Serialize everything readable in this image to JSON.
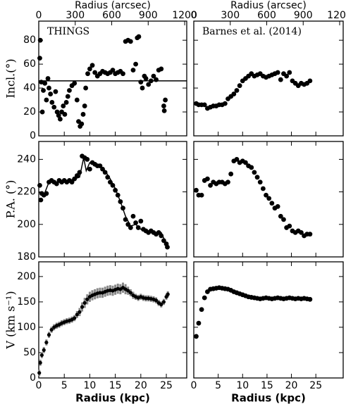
{
  "chart_data": [
    {
      "type": "scatter",
      "x2label": "Radius (arcsec)",
      "x2lim": [
        0,
        1217
      ],
      "x2ticks": [
        0,
        300,
        600,
        900,
        1200
      ],
      "xlim": [
        0,
        29
      ],
      "xticks": [
        0,
        5,
        10,
        15,
        20,
        25
      ],
      "ylim": [
        0,
        96
      ],
      "yticks": [
        0,
        20,
        40,
        60,
        80
      ],
      "ylabel": "Incl.(°)",
      "annotation": "THINGS",
      "hline": 46,
      "series": [
        {
          "style": "points",
          "x": [
            0.2,
            0.3,
            0.5,
            0.7,
            0.9,
            1.2,
            1.5,
            1.8,
            2,
            2.3,
            2.6,
            3,
            3.3,
            3.6,
            3.9,
            4.2,
            4.5,
            4.8,
            5.1,
            5.4,
            5.7,
            6,
            6.5,
            7,
            7.5,
            7.8,
            8.1,
            8.4,
            8.7,
            9,
            9.2,
            9.6,
            10,
            10.5,
            11,
            11.5,
            12,
            12.5,
            13,
            13.5,
            14,
            14.5,
            15,
            15.5,
            16,
            16.5,
            17,
            17.5,
            18,
            18.5,
            19,
            19.3,
            19.6,
            20,
            20.3,
            20.7,
            21,
            21.5,
            22,
            22.5,
            23,
            23.5,
            24,
            24.5,
            24.8,
            24.6
          ],
          "values": [
            65,
            80,
            45,
            20,
            38,
            44,
            30,
            48,
            40,
            35,
            28,
            24,
            37,
            20,
            17,
            14,
            20,
            25,
            18,
            28,
            33,
            38,
            42,
            44,
            30,
            12,
            8,
            10,
            18,
            25,
            40,
            52,
            56,
            59,
            53,
            50,
            52,
            54,
            53,
            52,
            53,
            55,
            52,
            53,
            54,
            52,
            79,
            80,
            79,
            55,
            60,
            82,
            83,
            45,
            40,
            50,
            48,
            43,
            46,
            50,
            47,
            55,
            56,
            25,
            30,
            21
          ]
        }
      ]
    },
    {
      "type": "scatter",
      "x2label": "Radius (arcsec)",
      "x2lim": [
        0,
        1229
      ],
      "x2ticks": [
        0,
        300,
        600,
        900,
        1200
      ],
      "xlim": [
        0,
        30.6
      ],
      "xticks": [
        0,
        5,
        10,
        15,
        20,
        25
      ],
      "ylim": [
        0,
        96
      ],
      "yticks": [
        0,
        20,
        40,
        60,
        80
      ],
      "annotation": "Barnes et al. (2014)",
      "series": [
        {
          "style": "points",
          "x": [
            0.5,
            1,
            1.6,
            2.2,
            2.8,
            3.4,
            4,
            4.6,
            5.2,
            5.8,
            6.4,
            7,
            7.6,
            8.2,
            8.8,
            9.4,
            10,
            10.6,
            11.2,
            11.8,
            12.4,
            13,
            13.6,
            14.2,
            14.8,
            15.4,
            16,
            16.6,
            17.2,
            17.8,
            18.4,
            19,
            19.6,
            20.2,
            20.8,
            21.4,
            22,
            22.6,
            23.2,
            23.8
          ],
          "values": [
            27,
            26,
            26,
            26,
            23,
            24,
            25,
            25,
            26,
            26,
            27,
            31,
            33,
            35,
            38,
            42,
            46,
            48,
            50,
            52,
            50,
            51,
            52,
            50,
            49,
            50,
            51,
            52,
            53,
            47,
            52,
            50,
            53,
            46,
            44,
            42,
            44,
            43,
            44,
            46
          ]
        }
      ]
    },
    {
      "type": "scatter",
      "xlim": [
        0,
        29
      ],
      "xticks": [
        0,
        5,
        10,
        15,
        20,
        25
      ],
      "ylim": [
        180,
        251
      ],
      "yticks": [
        180,
        200,
        220,
        240
      ],
      "ylabel": "P.A. (°)",
      "series": [
        {
          "style": "points",
          "x": [
            0.2,
            0.4,
            0.6,
            1,
            1.5,
            2,
            2.5,
            3,
            3.5,
            4,
            4.5,
            5,
            5.5,
            6,
            6.5,
            7,
            7.5,
            8,
            8.5,
            9,
            9.5,
            10,
            10.5,
            11,
            11.5,
            12,
            12.5,
            13,
            13.5,
            14,
            14.5,
            15,
            15.5,
            16,
            16.5,
            17,
            17.5,
            18,
            18.5,
            19,
            19.5,
            20,
            20.5,
            21,
            21.5,
            22,
            22.5,
            23,
            23.5,
            24,
            24.5,
            25,
            25.2
          ],
          "values": [
            224,
            215,
            219,
            218,
            219,
            226,
            227,
            226,
            225,
            227,
            226,
            227,
            226,
            227,
            226,
            228,
            230,
            232,
            242,
            241,
            240,
            234,
            238,
            237,
            236,
            236,
            234,
            232,
            229,
            226,
            224,
            221,
            218,
            214,
            210,
            203,
            200,
            198,
            205,
            201,
            198,
            202,
            197,
            196,
            195,
            196,
            195,
            194,
            195,
            193,
            190,
            188,
            186
          ]
        },
        {
          "style": "line",
          "x": [
            0,
            1,
            2,
            4,
            6,
            8,
            8.8,
            9.3,
            10,
            12,
            13,
            14,
            15,
            16,
            17,
            18,
            19,
            20,
            22,
            23,
            24,
            25,
            25.3
          ],
          "values": [
            220,
            218,
            226,
            226,
            227,
            229,
            241,
            233,
            238,
            236,
            233,
            228,
            222,
            214,
            205,
            199,
            200,
            197,
            195,
            195,
            195,
            188,
            185
          ]
        }
      ]
    },
    {
      "type": "scatter",
      "xlim": [
        0,
        30.6
      ],
      "xticks": [
        0,
        5,
        10,
        15,
        20,
        25
      ],
      "ylim": [
        180,
        251
      ],
      "yticks": [
        180,
        200,
        220,
        240
      ],
      "series": [
        {
          "style": "points",
          "x": [
            0.5,
            1,
            1.6,
            2.2,
            2.8,
            3.4,
            4,
            4.6,
            5.2,
            5.8,
            6.4,
            7,
            7.6,
            8.2,
            8.8,
            9.4,
            10,
            10.6,
            11.2,
            11.8,
            12.4,
            13,
            13.6,
            14.2,
            14.8,
            15.4,
            16,
            16.6,
            17.2,
            17.8,
            18.4,
            19,
            19.6,
            20.2,
            20.8,
            21.4,
            22,
            22.6,
            23.2,
            23.8
          ],
          "values": [
            221,
            218,
            218,
            227,
            228,
            224,
            226,
            225,
            226,
            226,
            225,
            226,
            231,
            239,
            240,
            238,
            239,
            238,
            236,
            235,
            232,
            229,
            226,
            222,
            218,
            216,
            213,
            210,
            211,
            205,
            203,
            198,
            199,
            196,
            195,
            196,
            195,
            193,
            194,
            194
          ]
        }
      ]
    },
    {
      "type": "scatter",
      "xlabel": "Radius (kpc)",
      "xlim": [
        0,
        29
      ],
      "xticks": [
        0,
        5,
        10,
        15,
        20,
        25
      ],
      "ylim": [
        0,
        229
      ],
      "yticks": [
        0,
        50,
        100,
        150,
        200
      ],
      "ylabel": "V (km s⁻¹)",
      "series": [
        {
          "style": "points",
          "x": [
            0.1,
            0.3,
            0.6,
            1,
            1.5,
            2,
            2.5,
            3,
            3.5,
            4,
            4.5,
            5,
            5.5,
            6,
            6.5,
            7,
            7.5,
            8,
            8.5,
            9,
            9.5,
            10,
            10.5,
            11,
            11.5,
            12,
            12.5,
            13,
            13.5,
            14,
            14.5,
            15,
            15.5,
            16,
            16.5,
            17,
            17.5,
            18,
            18.5,
            19,
            19.5,
            20,
            20.5,
            21,
            21.5,
            22,
            22.5,
            23,
            23.5,
            24,
            24.5,
            25,
            25.3
          ],
          "values": [
            10,
            30,
            45,
            55,
            70,
            85,
            95,
            100,
            103,
            105,
            108,
            110,
            112,
            113,
            115,
            118,
            125,
            130,
            140,
            148,
            155,
            160,
            163,
            165,
            167,
            168,
            168,
            170,
            172,
            173,
            172,
            174,
            176,
            175,
            178,
            175,
            172,
            168,
            163,
            160,
            158,
            160,
            158,
            157,
            157,
            156,
            155,
            153,
            148,
            145,
            150,
            160,
            165
          ],
          "errors": [
            6,
            6,
            6,
            6,
            6,
            6,
            6,
            6,
            6,
            6,
            6,
            6,
            6,
            6,
            6,
            6,
            7,
            8,
            9,
            10,
            10,
            10,
            10,
            10,
            10,
            10,
            10,
            10,
            10,
            10,
            10,
            10,
            10,
            10,
            10,
            10,
            8,
            7,
            7,
            6,
            6,
            6,
            6,
            6,
            6,
            6,
            6,
            6,
            6,
            6,
            6,
            6,
            6
          ]
        }
      ]
    },
    {
      "type": "scatter",
      "xlabel": "Radius (kpc)",
      "xlim": [
        0,
        30.6
      ],
      "xticks": [
        0,
        5,
        10,
        15,
        20,
        25
      ],
      "ylim": [
        0,
        229
      ],
      "yticks": [
        0,
        50,
        100,
        150,
        200
      ],
      "series": [
        {
          "style": "points",
          "x": [
            0.5,
            1,
            1.6,
            2.2,
            2.8,
            3.4,
            4,
            4.6,
            5.2,
            5.8,
            6.4,
            7,
            7.6,
            8.2,
            8.8,
            9.4,
            10,
            10.6,
            11.2,
            11.8,
            12.4,
            13,
            13.6,
            14.2,
            14.8,
            15.4,
            16,
            16.6,
            17.2,
            17.8,
            18.4,
            19,
            19.6,
            20.2,
            20.8,
            21.4,
            22,
            22.6,
            23.2,
            23.8
          ],
          "values": [
            82,
            108,
            135,
            158,
            170,
            175,
            176,
            177,
            178,
            177,
            176,
            175,
            173,
            170,
            168,
            166,
            164,
            162,
            160,
            159,
            158,
            157,
            156,
            157,
            158,
            157,
            156,
            157,
            158,
            157,
            156,
            157,
            158,
            157,
            156,
            157,
            156,
            157,
            156,
            155
          ]
        }
      ]
    }
  ]
}
